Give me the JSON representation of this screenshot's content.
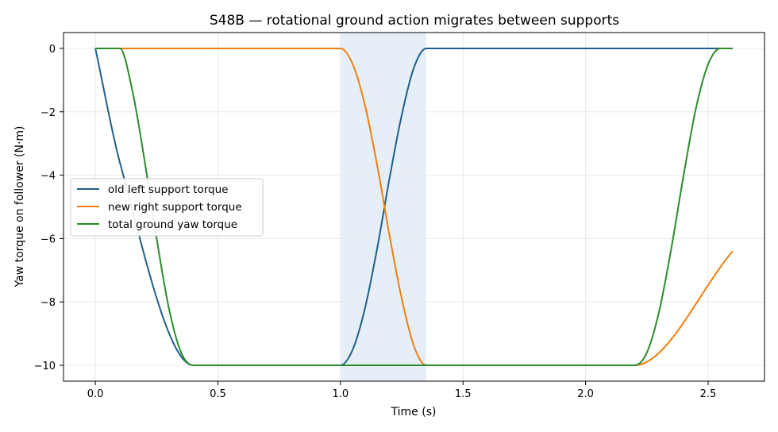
{
  "chart_data": {
    "type": "line",
    "title": "S48B — rotational ground action migrates between supports",
    "xlabel": "Time (s)",
    "ylabel": "Yaw torque on follower (N·m)",
    "xlim": [
      -0.13,
      2.73
    ],
    "ylim": [
      -10.5,
      0.5
    ],
    "xticks": [
      0.0,
      0.5,
      1.0,
      1.5,
      2.0,
      2.5
    ],
    "xtick_labels": [
      "0.0",
      "0.5",
      "1.0",
      "1.5",
      "2.0",
      "2.5"
    ],
    "yticks": [
      0,
      -2,
      -4,
      -6,
      -8,
      -10
    ],
    "ytick_labels": [
      "0",
      "−2",
      "−4",
      "−6",
      "−8",
      "−10"
    ],
    "grid": true,
    "legend_position": "center-left",
    "shaded_interval": {
      "x": [
        1.0,
        1.35
      ],
      "color": "#e6eff8"
    },
    "series": [
      {
        "name": "old left support torque",
        "color": "#1f5f8b",
        "x": [
          0.0,
          0.1,
          0.4,
          1.0,
          1.05,
          1.1,
          1.15,
          1.2,
          1.25,
          1.3,
          1.35,
          2.6
        ],
        "y": [
          0,
          -3.6,
          -10,
          -10,
          -9.5,
          -8.2,
          -6.3,
          -4.1,
          -2.1,
          -0.6,
          0,
          0
        ]
      },
      {
        "name": "new right support torque",
        "color": "#f07f0e",
        "x": [
          0.0,
          1.0,
          1.05,
          1.1,
          1.15,
          1.2,
          1.25,
          1.3,
          1.35,
          2.2,
          2.6
        ],
        "y": [
          0,
          0,
          -0.5,
          -1.8,
          -3.7,
          -5.9,
          -7.9,
          -9.4,
          -10,
          -10,
          -6.4
        ]
      },
      {
        "name": "total ground yaw torque",
        "color": "#2a8c2a",
        "x": [
          0.0,
          0.1,
          0.15,
          0.2,
          0.25,
          0.3,
          0.35,
          0.4,
          2.2,
          2.25,
          2.3,
          2.35,
          2.4,
          2.45,
          2.5,
          2.55,
          2.6
        ],
        "y": [
          0,
          0,
          -1.3,
          -3.5,
          -6.0,
          -8.2,
          -9.6,
          -10,
          -10,
          -9.6,
          -8.3,
          -6.3,
          -4.0,
          -1.9,
          -0.5,
          0,
          0
        ]
      }
    ]
  }
}
